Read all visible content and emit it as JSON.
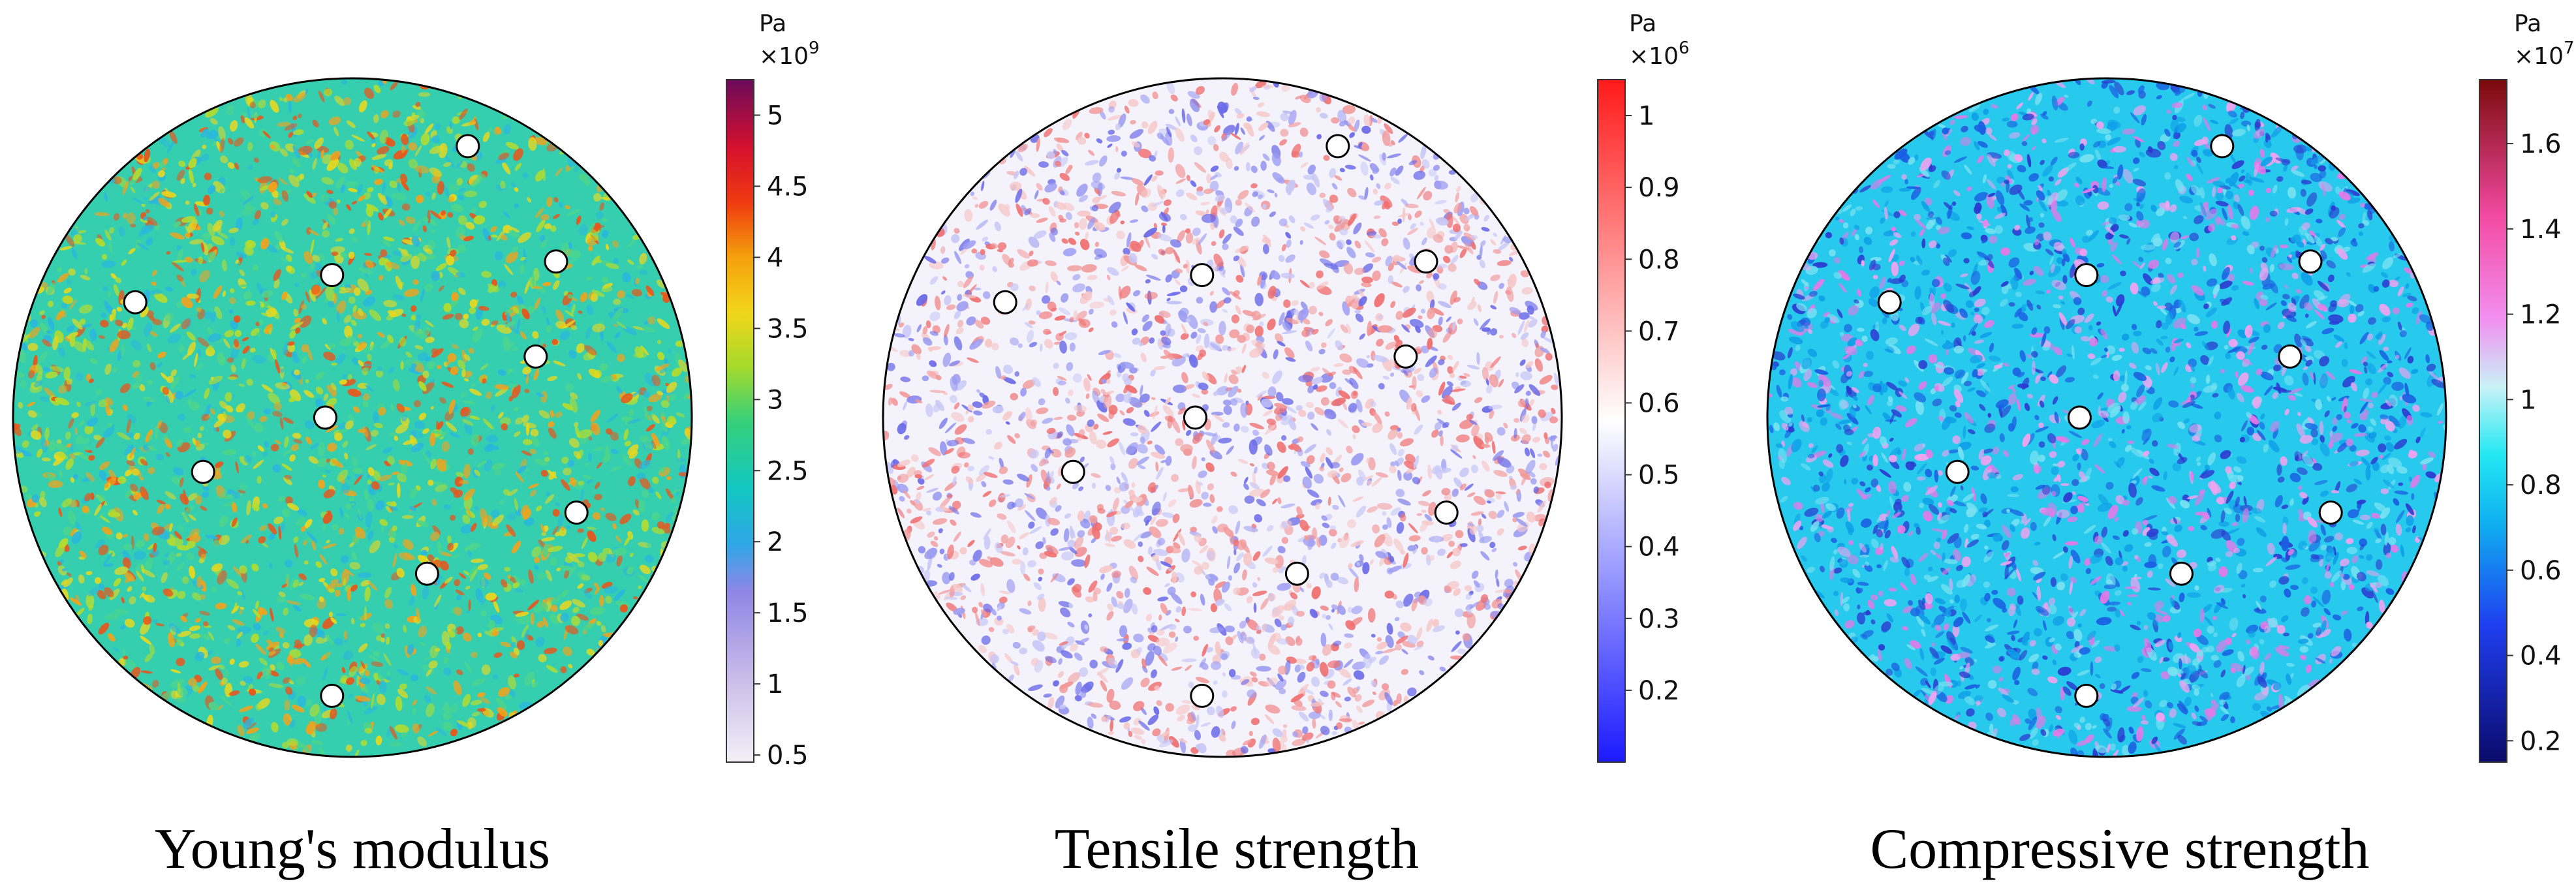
{
  "panels": [
    {
      "id": "youngs",
      "caption": "Young's modulus",
      "unit": "Pa",
      "multiplier_base": "×10",
      "multiplier_exp": "9",
      "range": [
        0.45,
        5.25
      ],
      "ticks": [
        "0.5",
        "1",
        "1.5",
        "2",
        "2.5",
        "3",
        "3.5",
        "4",
        "4.5",
        "5"
      ],
      "tick_values": [
        0.5,
        1,
        1.5,
        2,
        2.5,
        3,
        3.5,
        4,
        4.5,
        5
      ],
      "colormap_stops": [
        {
          "v": 0.0,
          "c": "#f3f0f7"
        },
        {
          "v": 0.12,
          "c": "#cbbde8"
        },
        {
          "v": 0.25,
          "c": "#8f86e6"
        },
        {
          "v": 0.32,
          "c": "#2ea6e6"
        },
        {
          "v": 0.4,
          "c": "#12c7c2"
        },
        {
          "v": 0.5,
          "c": "#36d07a"
        },
        {
          "v": 0.58,
          "c": "#a6da2b"
        },
        {
          "v": 0.66,
          "c": "#f2d51a"
        },
        {
          "v": 0.74,
          "c": "#f5a00c"
        },
        {
          "v": 0.82,
          "c": "#f03a10"
        },
        {
          "v": 0.9,
          "c": "#d5102e"
        },
        {
          "v": 1.0,
          "c": "#6b0a5a"
        }
      ],
      "field_base": "#35cfb0",
      "field_spots": [
        "#b5dc2e",
        "#e7d820",
        "#f2a31c",
        "#e9551a",
        "#2ab7dc",
        "#4ed58a"
      ]
    },
    {
      "id": "tensile",
      "caption": "Tensile strength",
      "unit": "Pa",
      "multiplier_base": "×10",
      "multiplier_exp": "6",
      "range": [
        0.1,
        1.05
      ],
      "ticks": [
        "0.2",
        "0.3",
        "0.4",
        "0.5",
        "0.6",
        "0.7",
        "0.8",
        "0.9",
        "1"
      ],
      "tick_values": [
        0.2,
        0.3,
        0.4,
        0.5,
        0.6,
        0.7,
        0.8,
        0.9,
        1.0
      ],
      "colormap_stops": [
        {
          "v": 0.0,
          "c": "#1a1aff"
        },
        {
          "v": 0.5,
          "c": "#ffffff"
        },
        {
          "v": 1.0,
          "c": "#ff1a1a"
        }
      ],
      "field_base": "#f4f2fb",
      "field_spots": [
        "#9c9cf2",
        "#6a6ae8",
        "#f29a9a",
        "#f07070",
        "#c8c8f6",
        "#f6c8c8"
      ]
    },
    {
      "id": "compressive",
      "caption": "Compressive strength",
      "unit": "Pa",
      "multiplier_base": "×10",
      "multiplier_exp": "7",
      "range": [
        0.15,
        1.75
      ],
      "ticks": [
        "0.2",
        "0.4",
        "0.6",
        "0.8",
        "1",
        "1.2",
        "1.4",
        "1.6"
      ],
      "tick_values": [
        0.2,
        0.4,
        0.6,
        0.8,
        1.0,
        1.2,
        1.4,
        1.6
      ],
      "colormap_stops": [
        {
          "v": 0.0,
          "c": "#0a0a6a"
        },
        {
          "v": 0.2,
          "c": "#1f3ef0"
        },
        {
          "v": 0.35,
          "c": "#0fb0f0"
        },
        {
          "v": 0.45,
          "c": "#22e8f2"
        },
        {
          "v": 0.55,
          "c": "#c9f2f7"
        },
        {
          "v": 0.65,
          "c": "#f28ff0"
        },
        {
          "v": 0.8,
          "c": "#f24aa2"
        },
        {
          "v": 1.0,
          "c": "#7a0a0a"
        }
      ],
      "field_base": "#27c9ec",
      "field_spots": [
        "#e779e8",
        "#f2a3f0",
        "#1b5fe2",
        "#2c3ad0",
        "#79e2f2",
        "#0f9fe8"
      ]
    }
  ],
  "markers": [
    {
      "x": 0.67,
      "y": 0.1
    },
    {
      "x": 0.47,
      "y": 0.29
    },
    {
      "x": 0.8,
      "y": 0.27
    },
    {
      "x": 0.18,
      "y": 0.33
    },
    {
      "x": 0.77,
      "y": 0.41
    },
    {
      "x": 0.46,
      "y": 0.5
    },
    {
      "x": 0.28,
      "y": 0.58
    },
    {
      "x": 0.83,
      "y": 0.64
    },
    {
      "x": 0.61,
      "y": 0.73
    },
    {
      "x": 0.47,
      "y": 0.91
    }
  ]
}
